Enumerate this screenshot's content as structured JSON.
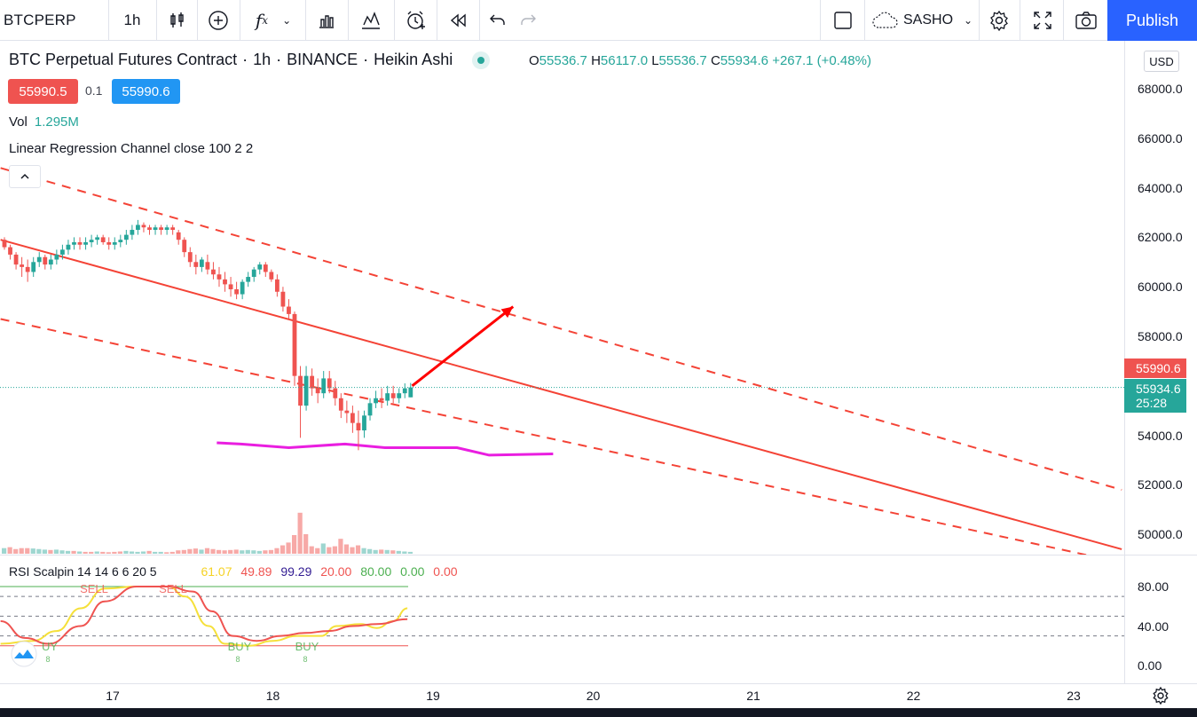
{
  "toolbar": {
    "symbol": "BTCPERP",
    "interval": "1h",
    "indicator_icon": "fx-icon",
    "layout_name": "SASHO",
    "publish_label": "Publish"
  },
  "legend": {
    "title_parts": [
      "BTC Perpetual Futures Contract",
      "1h",
      "BINANCE",
      "Heikin Ashi"
    ],
    "open_key": "O",
    "open": "55536.7",
    "high_key": "H",
    "high": "56117.0",
    "low_key": "L",
    "low": "55536.7",
    "close_key": "C",
    "close": "55934.6",
    "change": "+267.1 (+0.48%)",
    "sell_price": "55990.5",
    "spread": "0.1",
    "buy_price": "55990.6",
    "vol_label": "Vol",
    "vol_value": "1.295M",
    "lrc_label": "Linear Regression Channel close 100 2 2"
  },
  "rsi_legend": {
    "label": "RSI Scalpin 14 14 6 6 20 5",
    "values": [
      {
        "text": "61.07",
        "color": "#f5d224"
      },
      {
        "text": "49.89",
        "color": "#ef5350"
      },
      {
        "text": "99.29",
        "color": "#311b92"
      },
      {
        "text": "20.00",
        "color": "#ef5350"
      },
      {
        "text": "80.00",
        "color": "#4caf50"
      },
      {
        "text": "0.00",
        "color": "#4caf50"
      },
      {
        "text": "0.00",
        "color": "#ef5350"
      }
    ],
    "signals": [
      {
        "text": "SELL",
        "color": "#ef5350"
      },
      {
        "text": "SELL",
        "color": "#ef5350"
      },
      {
        "text": "UY",
        "color": "#4caf50"
      },
      {
        "text": "BUY",
        "color": "#4caf50"
      },
      {
        "text": "BUY",
        "color": "#4caf50"
      }
    ],
    "signal_sub": "8"
  },
  "price_scale": {
    "currency": "USD",
    "ticks": [
      "68000.0",
      "66000.0",
      "64000.0",
      "62000.0",
      "60000.0",
      "58000.0",
      "54000.0",
      "52000.0",
      "50000.0"
    ],
    "ask_label": "55990.6",
    "last_price": "55934.6",
    "countdown": "25:28"
  },
  "rsi_scale": {
    "ticks": [
      "80.00",
      "40.00",
      "0.00"
    ]
  },
  "time_scale": {
    "ticks": [
      "17",
      "18",
      "19",
      "20",
      "21",
      "22",
      "23"
    ]
  },
  "colors": {
    "up": "#26a69a",
    "down": "#ef5350",
    "up_vol": "#9ed6d0",
    "down_vol": "#f7a9a7",
    "channel": "#f44336",
    "support": "#e91ee0",
    "accent": "#2962ff"
  },
  "chart_data": {
    "type": "candlestick",
    "symbol": "BTCPERP",
    "x_axis_days": [
      "17",
      "18",
      "19",
      "20",
      "21",
      "22",
      "23"
    ],
    "ylim": [
      49000,
      69500
    ],
    "last_close": 55934.6,
    "candles": [
      [
        61900,
        62000,
        61500,
        61600
      ],
      [
        61600,
        61700,
        61100,
        61300
      ],
      [
        61300,
        61400,
        60700,
        60900
      ],
      [
        60900,
        61200,
        60400,
        60800
      ],
      [
        60800,
        61100,
        60200,
        60600
      ],
      [
        60600,
        61200,
        60400,
        61000
      ],
      [
        61000,
        61400,
        60800,
        61200
      ],
      [
        61200,
        61300,
        60700,
        60900
      ],
      [
        60900,
        61300,
        60700,
        61100
      ],
      [
        61100,
        61500,
        60900,
        61300
      ],
      [
        61300,
        61700,
        61100,
        61500
      ],
      [
        61500,
        61900,
        61300,
        61700
      ],
      [
        61700,
        62000,
        61500,
        61800
      ],
      [
        61800,
        62000,
        61500,
        61700
      ],
      [
        61700,
        62000,
        61500,
        61800
      ],
      [
        61800,
        62100,
        61600,
        61900
      ],
      [
        61900,
        62100,
        61700,
        62000
      ],
      [
        62000,
        62100,
        61700,
        61800
      ],
      [
        61800,
        62000,
        61500,
        61700
      ],
      [
        61700,
        62000,
        61500,
        61800
      ],
      [
        61800,
        62100,
        61600,
        61900
      ],
      [
        61900,
        62300,
        61700,
        62100
      ],
      [
        62100,
        62500,
        61900,
        62300
      ],
      [
        62300,
        62700,
        62100,
        62500
      ],
      [
        62500,
        62600,
        62200,
        62400
      ],
      [
        62400,
        62500,
        62100,
        62300
      ],
      [
        62300,
        62500,
        62100,
        62400
      ],
      [
        62400,
        62500,
        62100,
        62300
      ],
      [
        62300,
        62500,
        62100,
        62400
      ],
      [
        62400,
        62500,
        62100,
        62300
      ],
      [
        62200,
        62300,
        61700,
        61900
      ],
      [
        61900,
        62000,
        61200,
        61400
      ],
      [
        61400,
        61600,
        60800,
        61000
      ],
      [
        61000,
        61300,
        60500,
        60800
      ],
      [
        60800,
        61200,
        60600,
        61100
      ],
      [
        61000,
        61300,
        60500,
        60700
      ],
      [
        60700,
        61000,
        60300,
        60500
      ],
      [
        60500,
        60800,
        60000,
        60300
      ],
      [
        60300,
        60600,
        59800,
        60100
      ],
      [
        60100,
        60400,
        59600,
        59900
      ],
      [
        59900,
        60200,
        59500,
        59700
      ],
      [
        59700,
        60300,
        59500,
        60200
      ],
      [
        60200,
        60600,
        60000,
        60400
      ],
      [
        60400,
        60800,
        60200,
        60700
      ],
      [
        60700,
        61000,
        60500,
        60900
      ],
      [
        60900,
        61000,
        60400,
        60600
      ],
      [
        60600,
        60700,
        60200,
        60300
      ],
      [
        60300,
        60500,
        59600,
        59800
      ],
      [
        59800,
        60000,
        59000,
        59200
      ],
      [
        59200,
        59500,
        58700,
        58900
      ],
      [
        58900,
        59000,
        56000,
        56400
      ],
      [
        56400,
        56800,
        53900,
        55200
      ],
      [
        55200,
        56800,
        55000,
        56400
      ],
      [
        56400,
        56700,
        55600,
        55900
      ],
      [
        55900,
        56300,
        55300,
        55700
      ],
      [
        55700,
        56600,
        55500,
        56300
      ],
      [
        56300,
        56600,
        55700,
        55900
      ],
      [
        55900,
        56200,
        55200,
        55500
      ],
      [
        55500,
        55700,
        54700,
        55000
      ],
      [
        55000,
        55400,
        54500,
        54900
      ],
      [
        54900,
        55200,
        54100,
        54500
      ],
      [
        54500,
        55000,
        53400,
        54200
      ],
      [
        54200,
        55000,
        53900,
        54800
      ],
      [
        54800,
        55500,
        54600,
        55300
      ],
      [
        55300,
        55800,
        55100,
        55500
      ],
      [
        55500,
        55900,
        55100,
        55400
      ],
      [
        55400,
        56000,
        55200,
        55700
      ],
      [
        55700,
        56000,
        55300,
        55500
      ],
      [
        55500,
        55900,
        55300,
        55700
      ],
      [
        55700,
        56100,
        55500,
        55900
      ],
      [
        55536.7,
        56117.0,
        55536.7,
        55934.6
      ]
    ],
    "volume_bars": [
      [
        0.3,
        "up"
      ],
      [
        0.35,
        "down"
      ],
      [
        0.25,
        "down"
      ],
      [
        0.3,
        "down"
      ],
      [
        0.3,
        "down"
      ],
      [
        0.28,
        "up"
      ],
      [
        0.25,
        "up"
      ],
      [
        0.22,
        "up"
      ],
      [
        0.2,
        "down"
      ],
      [
        0.22,
        "up"
      ],
      [
        0.18,
        "up"
      ],
      [
        0.15,
        "up"
      ],
      [
        0.15,
        "down"
      ],
      [
        0.12,
        "up"
      ],
      [
        0.1,
        "down"
      ],
      [
        0.1,
        "down"
      ],
      [
        0.12,
        "up"
      ],
      [
        0.1,
        "down"
      ],
      [
        0.08,
        "down"
      ],
      [
        0.1,
        "down"
      ],
      [
        0.12,
        "down"
      ],
      [
        0.15,
        "up"
      ],
      [
        0.12,
        "up"
      ],
      [
        0.1,
        "up"
      ],
      [
        0.12,
        "up"
      ],
      [
        0.15,
        "down"
      ],
      [
        0.1,
        "up"
      ],
      [
        0.1,
        "up"
      ],
      [
        0.08,
        "down"
      ],
      [
        0.1,
        "down"
      ],
      [
        0.18,
        "down"
      ],
      [
        0.2,
        "down"
      ],
      [
        0.25,
        "down"
      ],
      [
        0.28,
        "down"
      ],
      [
        0.22,
        "up"
      ],
      [
        0.3,
        "down"
      ],
      [
        0.25,
        "down"
      ],
      [
        0.2,
        "down"
      ],
      [
        0.18,
        "down"
      ],
      [
        0.2,
        "down"
      ],
      [
        0.22,
        "down"
      ],
      [
        0.18,
        "up"
      ],
      [
        0.2,
        "up"
      ],
      [
        0.18,
        "up"
      ],
      [
        0.15,
        "up"
      ],
      [
        0.18,
        "down"
      ],
      [
        0.2,
        "down"
      ],
      [
        0.3,
        "down"
      ],
      [
        0.45,
        "down"
      ],
      [
        0.6,
        "down"
      ],
      [
        1.0,
        "down"
      ],
      [
        2.2,
        "down"
      ],
      [
        1.05,
        "down"
      ],
      [
        0.4,
        "down"
      ],
      [
        0.3,
        "down"
      ],
      [
        0.55,
        "up"
      ],
      [
        0.35,
        "down"
      ],
      [
        0.4,
        "down"
      ],
      [
        0.8,
        "down"
      ],
      [
        0.5,
        "down"
      ],
      [
        0.35,
        "down"
      ],
      [
        0.45,
        "down"
      ],
      [
        0.3,
        "up"
      ],
      [
        0.25,
        "up"
      ],
      [
        0.2,
        "up"
      ],
      [
        0.22,
        "down"
      ],
      [
        0.2,
        "up"
      ],
      [
        0.18,
        "down"
      ],
      [
        0.15,
        "up"
      ],
      [
        0.12,
        "up"
      ],
      [
        0.1,
        "up"
      ]
    ],
    "volume_unit": "relative",
    "regression_channel": {
      "center": [
        [
          16.3,
          61900
        ],
        [
          23.3,
          49400
        ]
      ],
      "upper": [
        [
          16.3,
          64800
        ],
        [
          23.3,
          51800
        ]
      ],
      "lower": [
        [
          16.3,
          58700
        ],
        [
          23.2,
          49000
        ]
      ]
    },
    "support_line": [
      [
        17.65,
        53700
      ],
      [
        17.8,
        53650
      ],
      [
        18.1,
        53500
      ],
      [
        18.45,
        53650
      ],
      [
        18.7,
        53500
      ],
      [
        19.15,
        53500
      ],
      [
        19.35,
        53200
      ],
      [
        19.75,
        53250
      ]
    ],
    "arrow": {
      "from": [
        18.87,
        56000
      ],
      "to": [
        19.5,
        59200
      ]
    },
    "rsi": {
      "ylim": [
        -5,
        105
      ],
      "upper_band": 80,
      "lower_band": 20,
      "mid": 50,
      "levels": [
        70,
        30
      ],
      "fast": [
        [
          16.3,
          22
        ],
        [
          16.5,
          25
        ],
        [
          16.65,
          35
        ],
        [
          16.8,
          58
        ],
        [
          16.95,
          78
        ],
        [
          17.15,
          80
        ],
        [
          17.35,
          80
        ],
        [
          17.45,
          70
        ],
        [
          17.6,
          40
        ],
        [
          17.7,
          22
        ],
        [
          17.85,
          20
        ],
        [
          18.0,
          25
        ],
        [
          18.15,
          30
        ],
        [
          18.3,
          30
        ],
        [
          18.4,
          40
        ],
        [
          18.55,
          42
        ],
        [
          18.65,
          38
        ],
        [
          18.75,
          45
        ],
        [
          18.84,
          58
        ]
      ],
      "slow": [
        [
          16.3,
          45
        ],
        [
          16.45,
          28
        ],
        [
          16.6,
          22
        ],
        [
          16.8,
          40
        ],
        [
          16.95,
          65
        ],
        [
          17.15,
          80
        ],
        [
          17.35,
          80
        ],
        [
          17.5,
          75
        ],
        [
          17.62,
          55
        ],
        [
          17.75,
          30
        ],
        [
          17.9,
          25
        ],
        [
          18.05,
          30
        ],
        [
          18.2,
          33
        ],
        [
          18.35,
          35
        ],
        [
          18.5,
          40
        ],
        [
          18.65,
          42
        ],
        [
          18.84,
          47
        ]
      ]
    }
  }
}
